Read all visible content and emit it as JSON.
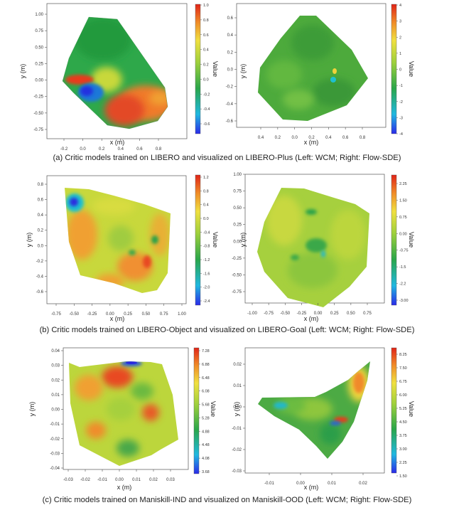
{
  "colors": {
    "low": "#3a4ee0",
    "mid": "#2ea84a",
    "high": "#e23420",
    "axis": "#555555"
  },
  "captions": {
    "a": "(a) Critic models trained on LIBERO and visualized on LIBERO-Plus (Left: WCM; Right: Flow-SDE)",
    "b": "(b) Critic models trained on LIBERO-Object and visualized on LIBERO-Goal (Left: WCM; Right: Flow-SDE)",
    "c": "(c) Critic models trained on Maniskill-IND and visualized on Maniskill-OOD (Left: WCM; Right: Flow-SDE)"
  },
  "chart_data": [
    {
      "type": "heatmap",
      "panel": "a-left",
      "xlabel": "x (m)",
      "ylabel": "y (m)",
      "colorbar_label": "Value",
      "xticks": [
        "-0.2",
        "0.0",
        "0.2",
        "0.4",
        "0.6",
        "0.8"
      ],
      "yticks": [
        "1.00",
        "0.75",
        "0.50",
        "0.25",
        "0.00",
        "-0.25",
        "-0.50",
        "-0.75"
      ],
      "colorbar_ticks": [
        "1.0",
        "0.8",
        "0.6",
        "0.4",
        "0.2",
        "0.0",
        "-0.2",
        "-0.4",
        "-0.6"
      ],
      "vmin": -0.75,
      "vmax": 1.0
    },
    {
      "type": "heatmap",
      "panel": "a-right",
      "xlabel": "x (m)",
      "ylabel": "y (m)",
      "colorbar_label": "Value",
      "xticks": [
        "0.4",
        "0.2",
        "0.0",
        "0.2",
        "0.4",
        "0.6",
        "0.8"
      ],
      "yticks": [
        "0.6",
        "0.4",
        "0.2",
        "0.0",
        "-0.2",
        "-0.4",
        "-0.6"
      ],
      "colorbar_ticks": [
        "4",
        "3",
        "2",
        "1",
        "0",
        "-1",
        "-2",
        "-3",
        "-4"
      ],
      "vmin": -4,
      "vmax": 4
    },
    {
      "type": "heatmap",
      "panel": "b-left",
      "xlabel": "x (m)",
      "ylabel": "y (m)",
      "colorbar_label": "Value",
      "xticks": [
        "-0.75",
        "-0.50",
        "-0.25",
        "0.00",
        "0.25",
        "0.50",
        "0.75",
        "1.00"
      ],
      "yticks": [
        "0.8",
        "0.6",
        "0.4",
        "0.2",
        "0.0",
        "-0.2",
        "-0.4",
        "-0.6"
      ],
      "colorbar_ticks": [
        "1.2",
        "0.8",
        "0.4",
        "0.0",
        "-0.4",
        "-0.8",
        "-1.2",
        "-1.6",
        "-2.0",
        "-2.4"
      ],
      "vmin": -2.5,
      "vmax": 1.3
    },
    {
      "type": "heatmap",
      "panel": "b-right",
      "xlabel": "x (m)",
      "ylabel": "y (m)",
      "colorbar_label": "Value",
      "xticks": [
        "-1.00",
        "-0.75",
        "-0.50",
        "-0.25",
        "0.00",
        "0.25",
        "0.50",
        "0.75"
      ],
      "yticks": [
        "1.00",
        "0.75",
        "0.50",
        "0.25",
        "0.00",
        "-0.25",
        "-0.50",
        "-0.75"
      ],
      "colorbar_ticks": [
        "2.25",
        "1.50",
        "0.75",
        "0.00",
        "-0.75",
        "-1.5",
        "-2.2",
        "-3.00"
      ],
      "vmin": -3.4,
      "vmax": 2.6
    },
    {
      "type": "heatmap",
      "panel": "c-left",
      "xlabel": "x (m)",
      "ylabel": "y (m)",
      "colorbar_label": "Value",
      "xticks": [
        "-0.03",
        "-0.02",
        "-0.01",
        "0.00",
        "0.01",
        "0.02",
        "0.03"
      ],
      "yticks": [
        "0.04",
        "0.03",
        "0.02",
        "0.01",
        "0.00",
        "-0.01",
        "-0.02",
        "-0.03",
        "-0.04"
      ],
      "colorbar_ticks": [
        "7.28",
        "6.88",
        "6.48",
        "6.08",
        "5.68",
        "5.28",
        "4.88",
        "4.48",
        "4.08",
        "3.68"
      ],
      "vmin": 3.6,
      "vmax": 7.3
    },
    {
      "type": "heatmap",
      "panel": "c-right",
      "xlabel": "x (m)",
      "ylabel": "y (m)",
      "colorbar_label": "Value",
      "xticks": [
        "-0.01",
        "0.00",
        "0.01",
        "0.02"
      ],
      "yticks": [
        "0.02",
        "0.01",
        "0.00",
        "-0.01",
        "-0.02",
        "-0.03"
      ],
      "colorbar_ticks": [
        "8.25",
        "7.50",
        "6.75",
        "6.00",
        "5.25",
        "4.50",
        "3.75",
        "3.00",
        "2.25",
        "1.50"
      ],
      "vmin": 1.5,
      "vmax": 8.7
    }
  ]
}
